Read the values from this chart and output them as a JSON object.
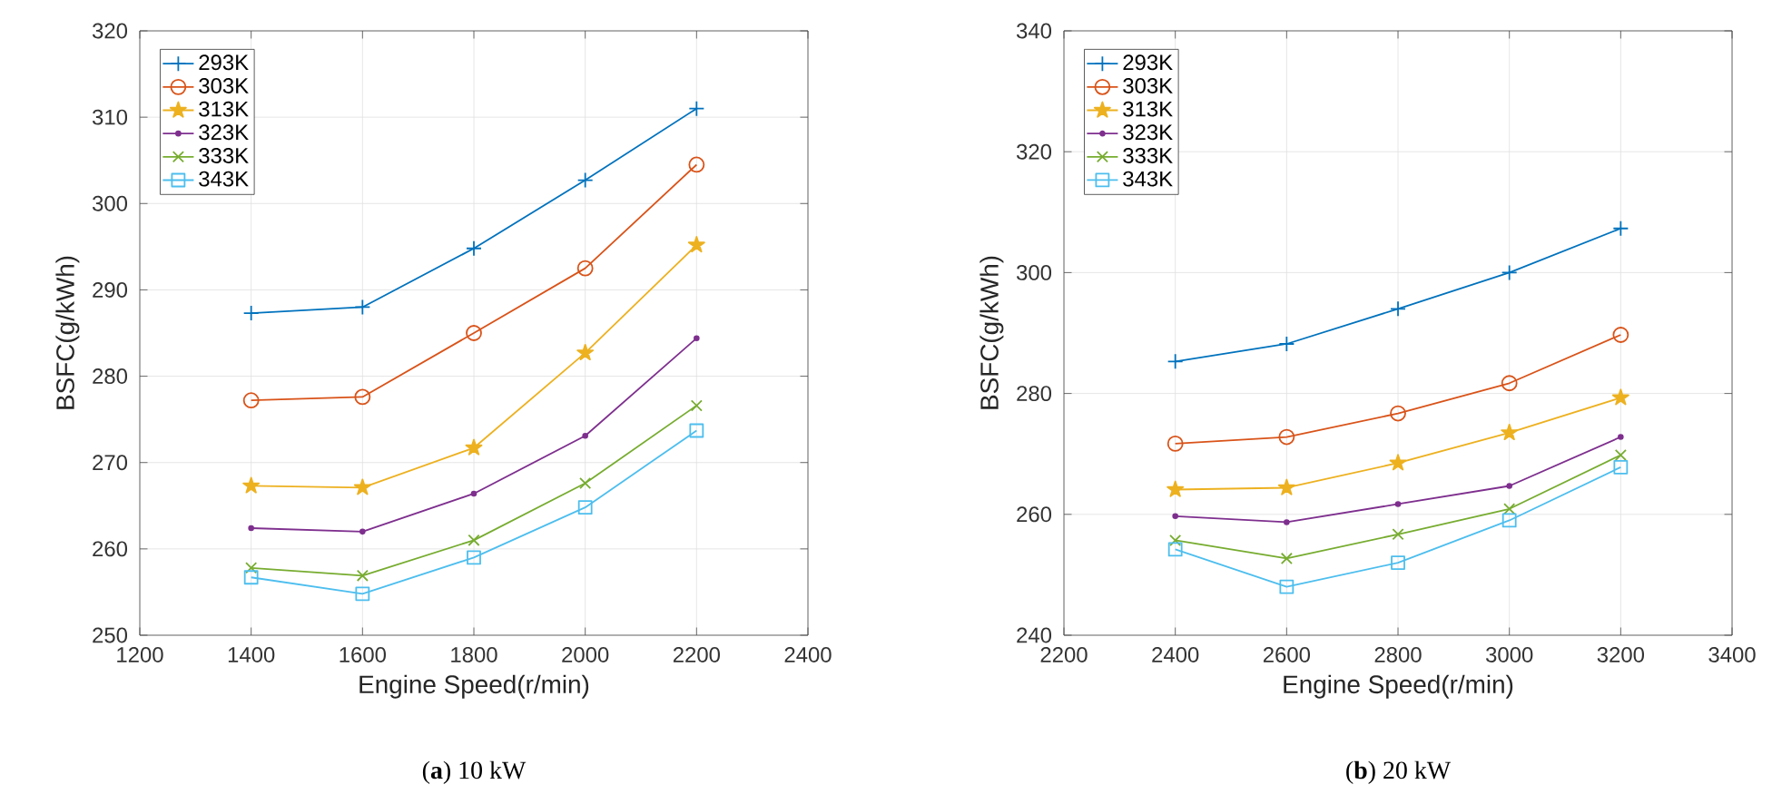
{
  "chart_data": [
    {
      "type": "line",
      "xlabel": "Engine Speed(r/min)",
      "ylabel": "BSFC(g/kWh)",
      "annotations": [
        "(**a**) 10 kW"
      ],
      "grid": true,
      "legend": "top left",
      "line_style": "solid",
      "x": [
        1400,
        1600,
        1800,
        2000,
        2200
      ],
      "xlim": [
        1200,
        2400
      ],
      "xticks": [
        1200,
        1400,
        1600,
        1800,
        2000,
        2200,
        2400
      ],
      "ylim": [
        250,
        320
      ],
      "yticks": [
        250,
        260,
        270,
        280,
        290,
        300,
        310,
        320
      ],
      "series": [
        {
          "name": "293K",
          "color": "#0072bd",
          "marker": "plus",
          "values": [
            287.3,
            288.0,
            294.8,
            302.7,
            311.0
          ]
        },
        {
          "name": "303K",
          "color": "#d95319",
          "marker": "circle",
          "values": [
            277.2,
            277.6,
            285.0,
            292.5,
            304.5
          ]
        },
        {
          "name": "313K",
          "color": "#edb120",
          "marker": "star",
          "values": [
            267.3,
            267.1,
            271.7,
            282.7,
            295.2
          ]
        },
        {
          "name": "323K",
          "color": "#7e2f8e",
          "marker": "point",
          "values": [
            262.4,
            262.0,
            266.4,
            273.1,
            284.4
          ]
        },
        {
          "name": "333K",
          "color": "#77ac30",
          "marker": "cross",
          "values": [
            257.8,
            256.9,
            261.0,
            267.6,
            276.6
          ]
        },
        {
          "name": "343K",
          "color": "#4dbeee",
          "marker": "square",
          "values": [
            256.7,
            254.8,
            259.0,
            264.8,
            273.7
          ]
        }
      ]
    },
    {
      "type": "line",
      "xlabel": "Engine Speed(r/min)",
      "ylabel": "BSFC(g/kWh)",
      "annotations": [
        "(**b**) 20 kW"
      ],
      "grid": true,
      "legend": "top left",
      "line_style": "solid",
      "x": [
        2400,
        2600,
        2800,
        3000,
        3200
      ],
      "xlim": [
        2200,
        3400
      ],
      "xticks": [
        2200,
        2400,
        2600,
        2800,
        3000,
        3200,
        3400
      ],
      "ylim": [
        240,
        340
      ],
      "yticks": [
        240,
        260,
        280,
        300,
        320,
        340
      ],
      "series": [
        {
          "name": "293K",
          "color": "#0072bd",
          "marker": "plus",
          "values": [
            285.3,
            288.2,
            294.0,
            300.0,
            307.3
          ]
        },
        {
          "name": "303K",
          "color": "#d95319",
          "marker": "circle",
          "values": [
            271.7,
            272.8,
            276.7,
            281.7,
            289.7
          ]
        },
        {
          "name": "313K",
          "color": "#edb120",
          "marker": "star",
          "values": [
            264.1,
            264.4,
            268.5,
            273.5,
            279.3
          ]
        },
        {
          "name": "323K",
          "color": "#7e2f8e",
          "marker": "point",
          "values": [
            259.7,
            258.7,
            261.7,
            264.7,
            272.8
          ]
        },
        {
          "name": "333K",
          "color": "#77ac30",
          "marker": "cross",
          "values": [
            255.7,
            252.7,
            256.7,
            260.9,
            269.8
          ]
        },
        {
          "name": "343K",
          "color": "#4dbeee",
          "marker": "square",
          "values": [
            254.2,
            248.0,
            252.0,
            259.0,
            267.8
          ]
        }
      ]
    }
  ]
}
